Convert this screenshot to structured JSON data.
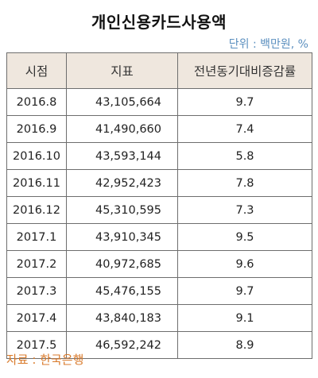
{
  "title": "개인신용카드사용액",
  "unit": "단위 : 백만원, %",
  "table": {
    "headers": [
      "시점",
      "지표",
      "전년동기대비증감률"
    ],
    "rows": [
      [
        "2016.8",
        "43,105,664",
        "9.7"
      ],
      [
        "2016.9",
        "41,490,660",
        "7.4"
      ],
      [
        "2016.10",
        "43,593,144",
        "5.8"
      ],
      [
        "2016.11",
        "42,952,423",
        "7.8"
      ],
      [
        "2016.12",
        "45,310,595",
        "7.3"
      ],
      [
        "2017.1",
        "43,910,345",
        "9.5"
      ],
      [
        "2017.2",
        "40,972,685",
        "9.6"
      ],
      [
        "2017.3",
        "45,476,155",
        "9.7"
      ],
      [
        "2017.4",
        "43,840,183",
        "9.1"
      ],
      [
        "2017.5",
        "46,592,242",
        "8.9"
      ]
    ]
  },
  "source": "자료 : 한국은행",
  "colors": {
    "header_bg": "#efe7de",
    "unit_text": "#5b8fbf",
    "source_text": "#d97a2b"
  }
}
